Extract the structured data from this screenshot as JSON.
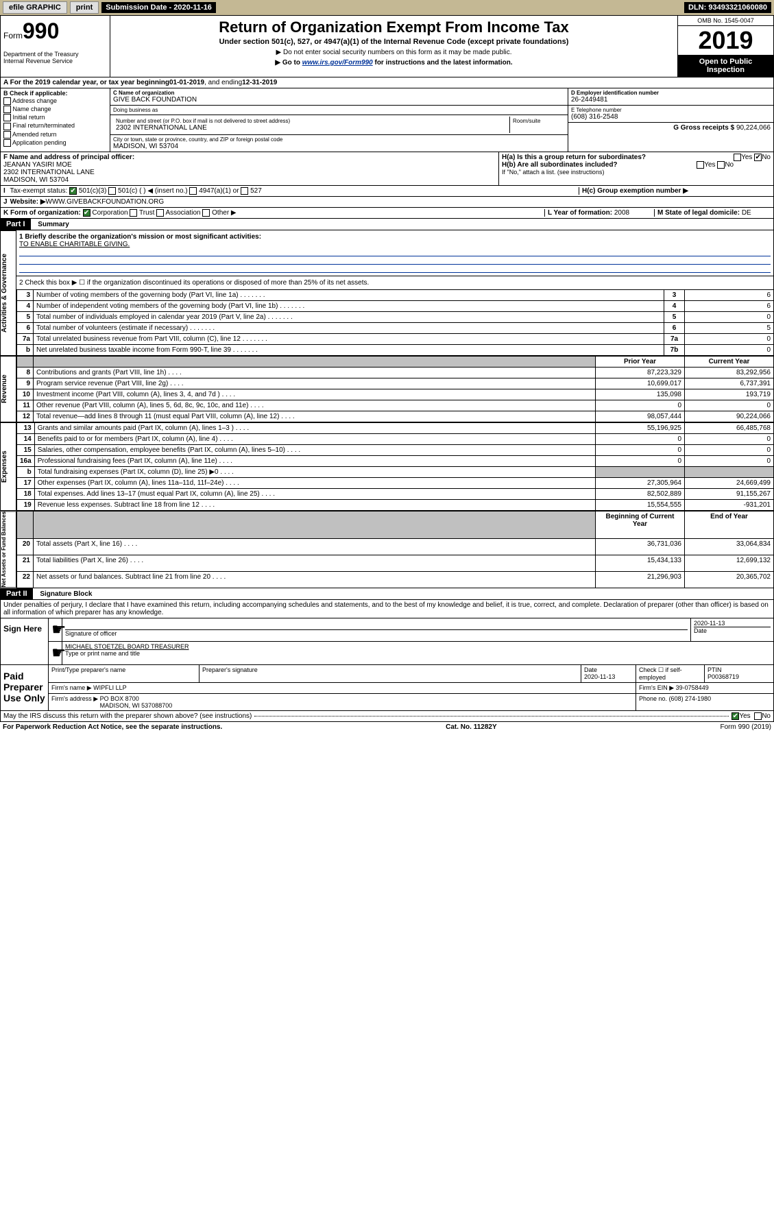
{
  "topbar": {
    "efile": "efile GRAPHIC",
    "print": "print",
    "sub_label": "Submission Date - 2020-11-16",
    "dln": "DLN: 93493321060080"
  },
  "header": {
    "form_label": "Form",
    "form_num": "990",
    "dept": "Department of the Treasury\nInternal Revenue Service",
    "title": "Return of Organization Exempt From Income Tax",
    "sub": "Under section 501(c), 527, or 4947(a)(1) of the Internal Revenue Code (except private foundations)",
    "note1": "▶ Do not enter social security numbers on this form as it may be made public.",
    "note2_pre": "▶ Go to ",
    "note2_link": "www.irs.gov/Form990",
    "note2_post": " for instructions and the latest information.",
    "omb": "OMB No. 1545-0047",
    "year": "2019",
    "open": "Open to Public Inspection"
  },
  "period": {
    "text_pre": "A For the 2019 calendar year, or tax year beginning ",
    "begin": "01-01-2019",
    "mid": " , and ending ",
    "end": "12-31-2019"
  },
  "checkB": {
    "label": "B Check if applicable:",
    "items": [
      "Address change",
      "Name change",
      "Initial return",
      "Final return/terminated",
      "Amended return",
      "Application pending"
    ]
  },
  "org": {
    "c_label": "C Name of organization",
    "name": "GIVE BACK FOUNDATION",
    "dba_label": "Doing business as",
    "dba": "",
    "addr_label": "Number and street (or P.O. box if mail is not delivered to street address)",
    "room_label": "Room/suite",
    "addr": "2302 INTERNATIONAL LANE",
    "city_label": "City or town, state or province, country, and ZIP or foreign postal code",
    "city": "MADISON, WI  53704"
  },
  "d": {
    "label": "D Employer identification number",
    "val": "26-2449481"
  },
  "e": {
    "label": "E Telephone number",
    "val": "(608) 316-2548"
  },
  "g": {
    "label": "G Gross receipts $",
    "val": "90,224,066"
  },
  "f": {
    "label": "F  Name and address of principal officer:",
    "name": "JEANAN YASIRI MOE",
    "addr": "2302 INTERNATIONAL LANE\nMADISON, WI  53704"
  },
  "h": {
    "ha": "H(a)  Is this a group return for subordinates?",
    "hb": "H(b)  Are all subordinates included?",
    "hb_note": "If \"No,\" attach a list. (see instructions)",
    "hc": "H(c)  Group exemption number ▶"
  },
  "i": {
    "label": "Tax-exempt status:",
    "opts": [
      "501(c)(3)",
      "501(c) (  ) ◀ (insert no.)",
      "4947(a)(1) or",
      "527"
    ]
  },
  "j": {
    "label": "Website: ▶",
    "val": "WWW.GIVEBACKFOUNDATION.ORG"
  },
  "k": {
    "label": "K Form of organization:",
    "opts": [
      "Corporation",
      "Trust",
      "Association",
      "Other ▶"
    ]
  },
  "l": {
    "label": "L Year of formation:",
    "val": "2008"
  },
  "m": {
    "label": "M State of legal domicile:",
    "val": "DE"
  },
  "part1": {
    "title": "Part I",
    "sub": "Summary",
    "mission_label": "1  Briefly describe the organization's mission or most significant activities:",
    "mission": "TO ENABLE CHARITABLE GIVING.",
    "line2": "2   Check this box ▶ ☐  if the organization discontinued its operations or disposed of more than 25% of its net assets.",
    "rows_gov": [
      {
        "n": "3",
        "d": "Number of voting members of the governing body (Part VI, line 1a)",
        "b": "3",
        "v": "6"
      },
      {
        "n": "4",
        "d": "Number of independent voting members of the governing body (Part VI, line 1b)",
        "b": "4",
        "v": "6"
      },
      {
        "n": "5",
        "d": "Total number of individuals employed in calendar year 2019 (Part V, line 2a)",
        "b": "5",
        "v": "0"
      },
      {
        "n": "6",
        "d": "Total number of volunteers (estimate if necessary)",
        "b": "6",
        "v": "5"
      },
      {
        "n": "7a",
        "d": "Total unrelated business revenue from Part VIII, column (C), line 12",
        "b": "7a",
        "v": "0"
      },
      {
        "n": "b",
        "d": "Net unrelated business taxable income from Form 990-T, line 39",
        "b": "7b",
        "v": "0"
      }
    ],
    "col_headers": {
      "prior": "Prior Year",
      "current": "Current Year"
    },
    "rows_rev": [
      {
        "n": "8",
        "d": "Contributions and grants (Part VIII, line 1h)",
        "p": "87,223,329",
        "c": "83,292,956"
      },
      {
        "n": "9",
        "d": "Program service revenue (Part VIII, line 2g)",
        "p": "10,699,017",
        "c": "6,737,391"
      },
      {
        "n": "10",
        "d": "Investment income (Part VIII, column (A), lines 3, 4, and 7d )",
        "p": "135,098",
        "c": "193,719"
      },
      {
        "n": "11",
        "d": "Other revenue (Part VIII, column (A), lines 5, 6d, 8c, 9c, 10c, and 11e)",
        "p": "0",
        "c": "0"
      },
      {
        "n": "12",
        "d": "Total revenue—add lines 8 through 11 (must equal Part VIII, column (A), line 12)",
        "p": "98,057,444",
        "c": "90,224,066"
      }
    ],
    "rows_exp": [
      {
        "n": "13",
        "d": "Grants and similar amounts paid (Part IX, column (A), lines 1–3 )",
        "p": "55,196,925",
        "c": "66,485,768"
      },
      {
        "n": "14",
        "d": "Benefits paid to or for members (Part IX, column (A), line 4)",
        "p": "0",
        "c": "0"
      },
      {
        "n": "15",
        "d": "Salaries, other compensation, employee benefits (Part IX, column (A), lines 5–10)",
        "p": "0",
        "c": "0"
      },
      {
        "n": "16a",
        "d": "Professional fundraising fees (Part IX, column (A), line 11e)",
        "p": "0",
        "c": "0"
      },
      {
        "n": "b",
        "d": "Total fundraising expenses (Part IX, column (D), line 25) ▶0",
        "p": "",
        "c": "",
        "grey": true
      },
      {
        "n": "17",
        "d": "Other expenses (Part IX, column (A), lines 11a–11d, 11f–24e)",
        "p": "27,305,964",
        "c": "24,669,499"
      },
      {
        "n": "18",
        "d": "Total expenses. Add lines 13–17 (must equal Part IX, column (A), line 25)",
        "p": "82,502,889",
        "c": "91,155,267"
      },
      {
        "n": "19",
        "d": "Revenue less expenses. Subtract line 18 from line 12",
        "p": "15,554,555",
        "c": "-931,201"
      }
    ],
    "col_headers2": {
      "prior": "Beginning of Current Year",
      "current": "End of Year"
    },
    "rows_net": [
      {
        "n": "20",
        "d": "Total assets (Part X, line 16)",
        "p": "36,731,036",
        "c": "33,064,834"
      },
      {
        "n": "21",
        "d": "Total liabilities (Part X, line 26)",
        "p": "15,434,133",
        "c": "12,699,132"
      },
      {
        "n": "22",
        "d": "Net assets or fund balances. Subtract line 21 from line 20",
        "p": "21,296,903",
        "c": "20,365,702"
      }
    ],
    "vert": {
      "gov": "Activities & Governance",
      "rev": "Revenue",
      "exp": "Expenses",
      "net": "Net Assets or Fund Balances"
    }
  },
  "part2": {
    "title": "Part II",
    "sub": "Signature Block",
    "perjury": "Under penalties of perjury, I declare that I have examined this return, including accompanying schedules and statements, and to the best of my knowledge and belief, it is true, correct, and complete. Declaration of preparer (other than officer) is based on all information of which preparer has any knowledge.",
    "sign_here": "Sign Here",
    "sig_officer": "Signature of officer",
    "sig_date": "2020-11-13",
    "date_label": "Date",
    "officer_name": "MICHAEL STOETZEL  BOARD TREASURER",
    "officer_label": "Type or print name and title",
    "paid": "Paid Preparer Use Only",
    "prep_name_label": "Print/Type preparer's name",
    "prep_sig_label": "Preparer's signature",
    "prep_date_label": "Date",
    "prep_date": "2020-11-13",
    "check_self": "Check ☐ if self-employed",
    "ptin_label": "PTIN",
    "ptin": "P00368719",
    "firm_name_label": "Firm's name    ▶",
    "firm_name": "WIPFLI LLP",
    "firm_ein_label": "Firm's EIN ▶",
    "firm_ein": "39-0758449",
    "firm_addr_label": "Firm's address ▶",
    "firm_addr": "PO BOX 8700\nMADISON, WI  537088700",
    "phone_label": "Phone no.",
    "phone": "(608) 274-1980",
    "discuss": "May the IRS discuss this return with the preparer shown above? (see instructions)"
  },
  "footer": {
    "left": "For Paperwork Reduction Act Notice, see the separate instructions.",
    "mid": "Cat. No. 11282Y",
    "right": "Form 990 (2019)"
  }
}
